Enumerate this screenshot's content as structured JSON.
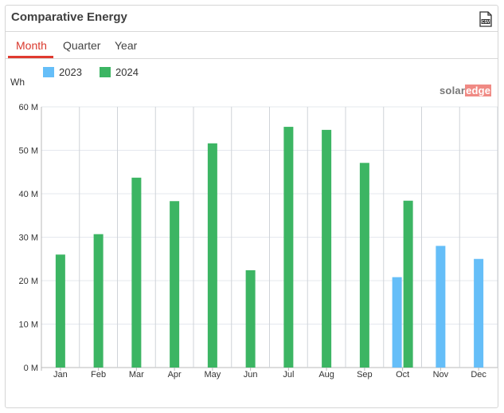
{
  "widget": {
    "title": "Comparative Energy",
    "csv_icon": "csv-download-icon"
  },
  "tabs": [
    {
      "label": "Month",
      "active": true
    },
    {
      "label": "Quarter",
      "active": false
    },
    {
      "label": "Year",
      "active": false
    }
  ],
  "brand": {
    "solar": "solar",
    "edge": "edge"
  },
  "colors": {
    "2023": "#65bef8",
    "2024": "#3cb563",
    "accent": "#e03a2f"
  },
  "chart_data": {
    "type": "bar",
    "ylabel": "Wh",
    "ylim": [
      0,
      60000000
    ],
    "yticks": [
      "0 M",
      "10 M",
      "20 M",
      "30 M",
      "40 M",
      "50 M",
      "60 M"
    ],
    "categories": [
      "Jan",
      "Feb",
      "Mar",
      "Apr",
      "May",
      "Jun",
      "Jul",
      "Aug",
      "Sep",
      "Oct",
      "Nov",
      "Dec"
    ],
    "legend_position": "top-left",
    "grid": true,
    "series": [
      {
        "name": "2023",
        "color": "#65bef8",
        "values": [
          null,
          null,
          null,
          null,
          null,
          null,
          null,
          null,
          null,
          20800000,
          28000000,
          25000000
        ]
      },
      {
        "name": "2024",
        "color": "#3cb563",
        "values": [
          26000000,
          30700000,
          43700000,
          38300000,
          51600000,
          22400000,
          55400000,
          54700000,
          47100000,
          38400000,
          null,
          null
        ]
      }
    ]
  }
}
